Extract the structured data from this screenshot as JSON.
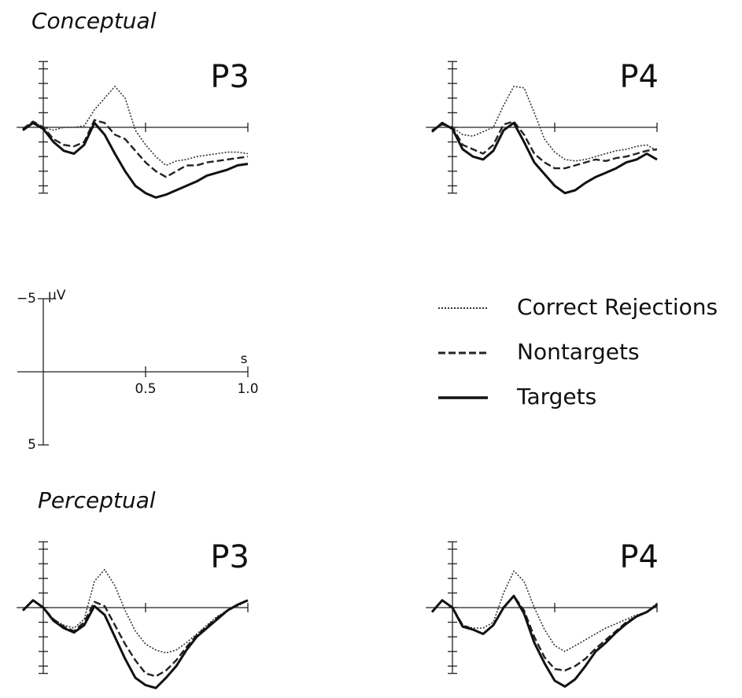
{
  "groups": [
    "Conceptual",
    "Perceptual"
  ],
  "legend": [
    {
      "name": "Correct Rejections",
      "dash": "2,2",
      "width": 1.6,
      "color": "#333333"
    },
    {
      "name": "Nontargets",
      "dash": "9,4",
      "width": 2.4,
      "color": "#222222"
    },
    {
      "name": "Targets",
      "dash": "none",
      "width": 3,
      "color": "#111111"
    }
  ],
  "scale": {
    "ylabel": "µV",
    "xlabel": "s",
    "xlim": [
      0,
      1
    ],
    "ylim": [
      -5,
      5
    ],
    "xticks": [
      0.5,
      {
        "value": 1,
        "label": "1.0"
      }
    ],
    "yticks": [
      {
        "value": -5,
        "label": "−5"
      },
      5
    ]
  },
  "chart_data": [
    {
      "type": "line",
      "title": "P3",
      "group": 0,
      "x": [
        -0.1,
        -0.05,
        0,
        0.05,
        0.1,
        0.15,
        0.2,
        0.25,
        0.3,
        0.35,
        0.4,
        0.45,
        0.5,
        0.55,
        0.6,
        0.65,
        0.7,
        0.75,
        0.8,
        0.85,
        0.9,
        0.95,
        1.0
      ],
      "xlim": [
        -0.13,
        1.0
      ],
      "ylim": [
        -4.5,
        4.5
      ],
      "xticks": [
        0.5,
        1
      ],
      "yticks": [
        -4,
        -3,
        -2,
        -1,
        0,
        1,
        2,
        3,
        4
      ],
      "series": [
        {
          "values": [
            0.2,
            -0.4,
            0,
            0.2,
            0,
            0,
            -0.1,
            -1.2,
            -2,
            -2.8,
            -2,
            0.2,
            1.2,
            2,
            2.6,
            2.3,
            2.2,
            2,
            1.9,
            1.8,
            1.7,
            1.7,
            1.8
          ]
        },
        {
          "values": [
            0.1,
            -0.4,
            0,
            0.8,
            1.2,
            1.3,
            1,
            -0.5,
            -0.3,
            0.5,
            0.8,
            1.6,
            2.4,
            3,
            3.4,
            3,
            2.6,
            2.6,
            2.4,
            2.3,
            2.2,
            2.1,
            2.0
          ]
        },
        {
          "values": [
            0.2,
            -0.3,
            0.1,
            1,
            1.6,
            1.8,
            1.2,
            -0.3,
            0.5,
            1.8,
            3,
            4,
            4.5,
            4.8,
            4.6,
            4.3,
            4,
            3.7,
            3.3,
            3.1,
            2.9,
            2.6,
            2.5
          ]
        }
      ]
    },
    {
      "type": "line",
      "title": "P4",
      "group": 0,
      "x": [
        -0.1,
        -0.05,
        0,
        0.05,
        0.1,
        0.15,
        0.2,
        0.25,
        0.3,
        0.35,
        0.4,
        0.45,
        0.5,
        0.55,
        0.6,
        0.65,
        0.7,
        0.75,
        0.8,
        0.85,
        0.9,
        0.95,
        1.0
      ],
      "xlim": [
        -0.13,
        1.0
      ],
      "ylim": [
        -4.5,
        4.5
      ],
      "xticks": [
        0.5,
        1
      ],
      "yticks": [
        -4,
        -3,
        -2,
        -1,
        0,
        1,
        2,
        3,
        4
      ],
      "series": [
        {
          "values": [
            0.3,
            -0.2,
            0,
            0.5,
            0.6,
            0.3,
            0,
            -1.5,
            -2.8,
            -2.7,
            -1,
            0.8,
            1.7,
            2.2,
            2.3,
            2.2,
            2,
            1.8,
            1.6,
            1.5,
            1.3,
            1.2,
            1.6
          ]
        },
        {
          "values": [
            0.2,
            -0.2,
            0,
            1.2,
            1.5,
            1.8,
            1.2,
            -0.2,
            -0.4,
            0.5,
            1.8,
            2.4,
            2.8,
            2.8,
            2.6,
            2.4,
            2.2,
            2.3,
            2.1,
            2,
            1.8,
            1.6,
            1.5
          ]
        },
        {
          "values": [
            0.3,
            -0.3,
            0.1,
            1.5,
            2,
            2.2,
            1.6,
            0.2,
            -0.3,
            1,
            2.4,
            3.2,
            4,
            4.5,
            4.3,
            3.8,
            3.4,
            3.1,
            2.8,
            2.4,
            2.2,
            1.8,
            2.2
          ]
        }
      ]
    },
    {
      "type": "line",
      "title": "P3",
      "group": 1,
      "x": [
        -0.1,
        -0.05,
        0,
        0.05,
        0.1,
        0.15,
        0.2,
        0.25,
        0.3,
        0.35,
        0.4,
        0.45,
        0.5,
        0.55,
        0.6,
        0.65,
        0.7,
        0.75,
        0.8,
        0.85,
        0.9,
        0.95,
        1.0
      ],
      "xlim": [
        -0.13,
        1.0
      ],
      "ylim": [
        -4.5,
        4.5
      ],
      "xticks": [
        0.5,
        1
      ],
      "yticks": [
        -4,
        -3,
        -2,
        -1,
        0,
        1,
        2,
        3,
        4
      ],
      "series": [
        {
          "values": [
            0.2,
            -0.5,
            0,
            0.8,
            1.2,
            1.4,
            0.8,
            -1.8,
            -2.6,
            -1.5,
            0.2,
            1.6,
            2.5,
            2.9,
            3.1,
            2.9,
            2.4,
            1.8,
            1.2,
            0.6,
            0.2,
            -0.1,
            -0.5
          ]
        },
        {
          "values": [
            0.2,
            -0.5,
            0,
            0.8,
            1.3,
            1.6,
            1,
            -0.4,
            -0.1,
            1.2,
            2.5,
            3.6,
            4.5,
            4.7,
            4.3,
            3.6,
            2.7,
            1.9,
            1.3,
            0.7,
            0.2,
            -0.2,
            -0.5
          ]
        },
        {
          "values": [
            0.2,
            -0.5,
            0,
            0.9,
            1.4,
            1.7,
            1.2,
            -0.1,
            0.5,
            2,
            3.5,
            4.8,
            5.3,
            5.5,
            4.8,
            4,
            2.9,
            2,
            1.4,
            0.8,
            0.2,
            -0.2,
            -0.5
          ]
        }
      ]
    },
    {
      "type": "line",
      "title": "P4",
      "group": 1,
      "x": [
        -0.1,
        -0.05,
        0,
        0.05,
        0.1,
        0.15,
        0.2,
        0.25,
        0.3,
        0.35,
        0.4,
        0.45,
        0.5,
        0.55,
        0.6,
        0.65,
        0.7,
        0.75,
        0.8,
        0.85,
        0.9,
        0.95,
        1.0
      ],
      "xlim": [
        -0.13,
        1.0
      ],
      "ylim": [
        -4.5,
        4.5
      ],
      "xticks": [
        0.5,
        1
      ],
      "yticks": [
        -4,
        -3,
        -2,
        -1,
        0,
        1,
        2,
        3,
        4
      ],
      "series": [
        {
          "values": [
            0.3,
            -0.5,
            0,
            1.2,
            1.4,
            1.4,
            1,
            -1,
            -2.5,
            -1.8,
            0,
            1.5,
            2.6,
            3,
            2.6,
            2.2,
            1.8,
            1.4,
            1.1,
            0.8,
            0.5,
            0.3,
            -0.3
          ]
        },
        {
          "values": [
            0.3,
            -0.5,
            0,
            1.2,
            1.5,
            1.8,
            1.2,
            0,
            -0.8,
            0.2,
            2,
            3.4,
            4.2,
            4.3,
            4,
            3.5,
            2.8,
            2.2,
            1.6,
            1,
            0.6,
            0.3,
            -0.2
          ]
        },
        {
          "values": [
            0.3,
            -0.5,
            0,
            1.3,
            1.5,
            1.8,
            1.2,
            0,
            -0.8,
            0.4,
            2.4,
            3.8,
            5,
            5.4,
            4.9,
            4,
            3,
            2.4,
            1.7,
            1.1,
            0.6,
            0.3,
            -0.2
          ]
        }
      ]
    }
  ]
}
